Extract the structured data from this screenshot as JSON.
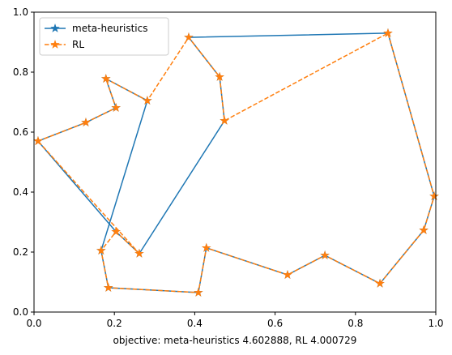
{
  "chart_data": {
    "type": "line",
    "xlabel": "objective: meta-heuristics 4.602888, RL 4.000729",
    "xlim": [
      0,
      1
    ],
    "ylim": [
      0,
      1
    ],
    "xticks": [
      {
        "value": 0,
        "label": "0.0"
      },
      {
        "value": 0.2,
        "label": "0.2"
      },
      {
        "value": 0.4,
        "label": "0.4"
      },
      {
        "value": 0.6,
        "label": "0.6"
      },
      {
        "value": 0.8,
        "label": "0.8"
      },
      {
        "value": 1,
        "label": "1.0"
      }
    ],
    "yticks": [
      {
        "value": 0,
        "label": "0.0"
      },
      {
        "value": 0.2,
        "label": "0.2"
      },
      {
        "value": 0.4,
        "label": "0.4"
      },
      {
        "value": 0.6,
        "label": "0.6"
      },
      {
        "value": 0.8,
        "label": "0.8"
      },
      {
        "value": 1,
        "label": "1.0"
      }
    ],
    "legend": "upper left",
    "series": [
      {
        "name": "meta-heuristics",
        "color": "#1f77b4",
        "linestyle": "solid",
        "marker": "star",
        "x": [
          0.01,
          0.129,
          0.204,
          0.179,
          0.282,
          0.167,
          0.185,
          0.409,
          0.429,
          0.631,
          0.724,
          0.861,
          0.97,
          0.996,
          0.881,
          0.385,
          0.462,
          0.474,
          0.262,
          0.204,
          0.01
        ],
        "values": [
          0.57,
          0.632,
          0.681,
          0.778,
          0.705,
          0.205,
          0.081,
          0.065,
          0.214,
          0.124,
          0.189,
          0.095,
          0.273,
          0.386,
          0.93,
          0.916,
          0.784,
          0.638,
          0.195,
          0.268,
          0.57
        ]
      },
      {
        "name": "RL",
        "color": "#ff7f0e",
        "linestyle": "dashed",
        "marker": "star",
        "x": [
          0.01,
          0.129,
          0.204,
          0.179,
          0.282,
          0.385,
          0.462,
          0.474,
          0.881,
          0.996,
          0.97,
          0.861,
          0.724,
          0.631,
          0.429,
          0.409,
          0.185,
          0.167,
          0.204,
          0.262,
          0.01
        ],
        "values": [
          0.57,
          0.632,
          0.681,
          0.778,
          0.705,
          0.916,
          0.784,
          0.638,
          0.93,
          0.386,
          0.273,
          0.095,
          0.189,
          0.124,
          0.214,
          0.065,
          0.081,
          0.205,
          0.268,
          0.195,
          0.57
        ]
      }
    ]
  }
}
